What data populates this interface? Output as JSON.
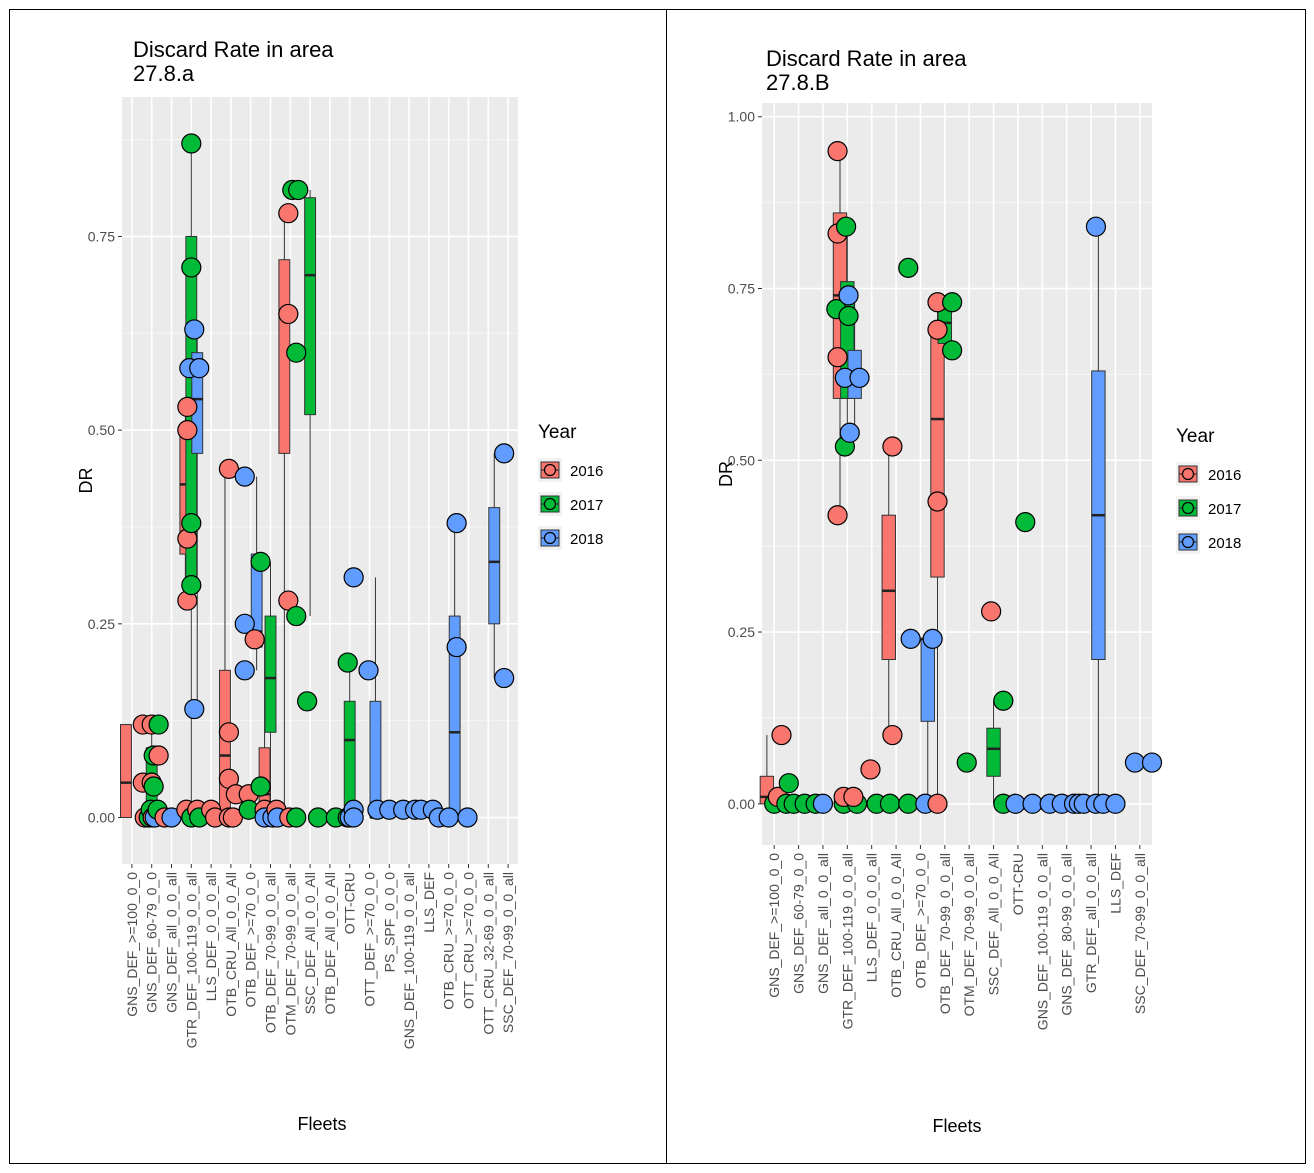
{
  "chart_data": [
    {
      "type": "boxplot",
      "title": "Discard Rate in area\n 27.8.a",
      "xlabel": "Fleets",
      "ylabel": "DR",
      "ylim": [
        -0.06,
        0.93
      ],
      "yticks": [
        0,
        0.25,
        0.5,
        0.75
      ],
      "ytick_labels": [
        "0.00",
        "0.25",
        "0.50",
        "0.75"
      ],
      "legend_title": "Year",
      "legend_position": "right",
      "grid": true,
      "series": [
        {
          "name": "2016",
          "color": "#F8766D"
        },
        {
          "name": "2017",
          "color": "#00BA38"
        },
        {
          "name": "2018",
          "color": "#619CFF"
        }
      ],
      "categories": [
        "GNS_DEF_>=100_0_0",
        "GNS_DEF_60-79_0_0",
        "GNS_DEF_all_0_0_all",
        "GTR_DEF_100-119_0_0_all",
        "LLS_DEF_0_0_0_all",
        "OTB_CRU_All_0_0_All",
        "OTB_DEF_>=70_0_0",
        "OTB_DEF_70-99_0_0_all",
        "OTM_DEF_70-99_0_0_all",
        "SSC_DEF_All_0_0_All",
        "OTB_DEF_All_0_0_All",
        "OTT-CRU",
        "OTT_DEF_>=70_0_0",
        "PS_SPF_0_0_0",
        "GNS_DEF_100-119_0_0_all",
        "LLS_DEF",
        "OTB_CRU_>=70_0_0",
        "OTT_CRU_>=70_0_0",
        "OTT_CRU_32-69_0_0_all",
        "SSC_DEF_70-99_0_0_all"
      ],
      "boxes": [
        {
          "cat": 0,
          "year": "2016",
          "q1": 0.0,
          "median": 0.045,
          "q3": 0.12,
          "whisker_low": 0.0,
          "whisker_high": 0.12
        },
        {
          "cat": 1,
          "year": "2017",
          "q1": 0.0,
          "median": 0.04,
          "q3": 0.09,
          "whisker_low": 0.0,
          "whisker_high": 0.12
        },
        {
          "cat": 3,
          "year": "2016",
          "q1": 0.34,
          "median": 0.43,
          "q3": 0.5,
          "whisker_low": 0.28,
          "whisker_high": 0.52
        },
        {
          "cat": 3,
          "year": "2017",
          "q1": 0.3,
          "median": 0.54,
          "q3": 0.75,
          "whisker_low": 0.0,
          "whisker_high": 0.87
        },
        {
          "cat": 3,
          "year": "2018",
          "q1": 0.47,
          "median": 0.54,
          "q3": 0.6,
          "whisker_low": 0.14,
          "whisker_high": 0.63
        },
        {
          "cat": 5,
          "year": "2016",
          "q1": 0.0,
          "median": 0.08,
          "q3": 0.19,
          "whisker_low": 0.0,
          "whisker_high": 0.45
        },
        {
          "cat": 6,
          "year": "2018",
          "q1": 0.22,
          "median": 0.24,
          "q3": 0.34,
          "whisker_low": 0.19,
          "whisker_high": 0.44
        },
        {
          "cat": 7,
          "year": "2016",
          "q1": 0.0,
          "median": 0.03,
          "q3": 0.09,
          "whisker_low": 0.0,
          "whisker_high": 0.23
        },
        {
          "cat": 7,
          "year": "2017",
          "q1": 0.11,
          "median": 0.18,
          "q3": 0.26,
          "whisker_low": 0.0,
          "whisker_high": 0.33
        },
        {
          "cat": 8,
          "year": "2016",
          "q1": 0.47,
          "median": 0.65,
          "q3": 0.72,
          "whisker_low": 0.0,
          "whisker_high": 0.78
        },
        {
          "cat": 9,
          "year": "2017",
          "q1": 0.52,
          "median": 0.7,
          "q3": 0.8,
          "whisker_low": 0.26,
          "whisker_high": 0.81
        },
        {
          "cat": 11,
          "year": "2017",
          "q1": 0.0,
          "median": 0.1,
          "q3": 0.15,
          "whisker_low": 0.0,
          "whisker_high": 0.2
        },
        {
          "cat": 12,
          "year": "2018",
          "q1": 0.0,
          "median": 0.0,
          "q3": 0.15,
          "whisker_low": 0.0,
          "whisker_high": 0.31
        },
        {
          "cat": 16,
          "year": "2018",
          "q1": 0.0,
          "median": 0.11,
          "q3": 0.26,
          "whisker_low": 0.0,
          "whisker_high": 0.38
        },
        {
          "cat": 18,
          "year": "2018",
          "q1": 0.25,
          "median": 0.33,
          "q3": 0.4,
          "whisker_low": 0.18,
          "whisker_high": 0.47
        }
      ],
      "points": [
        [
          0.55,
          0.12,
          "2016"
        ],
        [
          0.55,
          0.045,
          "2016"
        ],
        [
          0.65,
          0.0,
          "2016"
        ],
        [
          0.85,
          0.0,
          "2017"
        ],
        [
          0.95,
          0.01,
          "2017"
        ],
        [
          1.0,
          0.12,
          "2016"
        ],
        [
          1.0,
          0.045,
          "2016"
        ],
        [
          1.05,
          0.0,
          "2016"
        ],
        [
          1.1,
          0.08,
          "2017"
        ],
        [
          1.1,
          0.04,
          "2017"
        ],
        [
          1.15,
          0.0,
          "2018"
        ],
        [
          1.35,
          0.12,
          "2017"
        ],
        [
          1.35,
          0.08,
          "2016"
        ],
        [
          1.3,
          0.01,
          "2017"
        ],
        [
          1.65,
          0.0,
          "2016"
        ],
        [
          2.0,
          0.0,
          "2018"
        ],
        [
          2.8,
          0.53,
          "2016"
        ],
        [
          2.8,
          0.5,
          "2016"
        ],
        [
          2.8,
          0.36,
          "2016"
        ],
        [
          2.8,
          0.28,
          "2016"
        ],
        [
          2.75,
          0.01,
          "2016"
        ],
        [
          3.0,
          0.87,
          "2017"
        ],
        [
          3.0,
          0.71,
          "2017"
        ],
        [
          3.0,
          0.38,
          "2017"
        ],
        [
          3.0,
          0.3,
          "2017"
        ],
        [
          3.0,
          0.0,
          "2017"
        ],
        [
          2.9,
          0.58,
          "2018"
        ],
        [
          3.15,
          0.63,
          "2018"
        ],
        [
          3.15,
          0.14,
          "2018"
        ],
        [
          3.3,
          0.01,
          "2016"
        ],
        [
          3.4,
          0.58,
          "2018"
        ],
        [
          3.4,
          0.0,
          "2017"
        ],
        [
          4.0,
          0.01,
          "2016"
        ],
        [
          4.2,
          0.0,
          "2016"
        ],
        [
          4.9,
          0.45,
          "2016"
        ],
        [
          4.9,
          0.11,
          "2016"
        ],
        [
          4.9,
          0.05,
          "2016"
        ],
        [
          4.9,
          0.0,
          "2016"
        ],
        [
          5.1,
          0.0,
          "2016"
        ],
        [
          5.25,
          0.03,
          "2016"
        ],
        [
          5.9,
          0.03,
          "2016"
        ],
        [
          5.7,
          0.44,
          "2018"
        ],
        [
          5.7,
          0.25,
          "2018"
        ],
        [
          5.7,
          0.19,
          "2018"
        ],
        [
          5.9,
          0.01,
          "2017"
        ],
        [
          6.2,
          0.23,
          "2016"
        ],
        [
          6.5,
          0.33,
          "2017"
        ],
        [
          6.5,
          0.04,
          "2017"
        ],
        [
          6.7,
          0.01,
          "2016"
        ],
        [
          6.7,
          0.0,
          "2018"
        ],
        [
          7.1,
          0.0,
          "2018"
        ],
        [
          7.3,
          0.01,
          "2016"
        ],
        [
          7.35,
          0.0,
          "2018"
        ],
        [
          7.9,
          0.78,
          "2016"
        ],
        [
          7.9,
          0.65,
          "2016"
        ],
        [
          7.9,
          0.28,
          "2016"
        ],
        [
          7.95,
          0.0,
          "2016"
        ],
        [
          8.1,
          0.81,
          "2017"
        ],
        [
          8.4,
          0.81,
          "2017"
        ],
        [
          8.3,
          0.6,
          "2017"
        ],
        [
          8.3,
          0.26,
          "2017"
        ],
        [
          8.3,
          0.0,
          "2017"
        ],
        [
          8.85,
          0.15,
          "2017"
        ],
        [
          9.4,
          0.0,
          "2017"
        ],
        [
          10.3,
          0.0,
          "2017"
        ],
        [
          10.9,
          0.2,
          "2017"
        ],
        [
          10.9,
          0.0,
          "2017"
        ],
        [
          11.0,
          0.0,
          "2018"
        ],
        [
          11.2,
          0.01,
          "2018"
        ],
        [
          11.2,
          0.0,
          "2018"
        ],
        [
          11.2,
          0.31,
          "2018"
        ],
        [
          11.95,
          0.19,
          "2018"
        ],
        [
          12.4,
          0.01,
          "2018"
        ],
        [
          13.0,
          0.01,
          "2018"
        ],
        [
          13.7,
          0.01,
          "2018"
        ],
        [
          14.3,
          0.01,
          "2018"
        ],
        [
          14.6,
          0.01,
          "2018"
        ],
        [
          15.2,
          0.01,
          "2018"
        ],
        [
          15.5,
          0.0,
          "2018"
        ],
        [
          16.0,
          0.0,
          "2018"
        ],
        [
          16.4,
          0.38,
          "2018"
        ],
        [
          16.4,
          0.22,
          "2018"
        ],
        [
          16.95,
          0.0,
          "2018"
        ],
        [
          18.8,
          0.47,
          "2018"
        ],
        [
          18.8,
          0.18,
          "2018"
        ]
      ]
    },
    {
      "type": "boxplot",
      "title": "Discard Rate in area\n 27.8.B",
      "xlabel": "Fleets",
      "ylabel": "DR",
      "ylim": [
        -0.06,
        1.02
      ],
      "yticks": [
        0,
        0.25,
        0.5,
        0.75,
        1.0
      ],
      "ytick_labels": [
        "0.00",
        "0.25",
        "0.50",
        "0.75",
        "1.00"
      ],
      "legend_title": "Year",
      "legend_position": "right",
      "grid": true,
      "series": [
        {
          "name": "2016",
          "color": "#F8766D"
        },
        {
          "name": "2017",
          "color": "#00BA38"
        },
        {
          "name": "2018",
          "color": "#619CFF"
        }
      ],
      "categories": [
        "GNS_DEF_>=100_0_0",
        "GNS_DEF_60-79_0_0",
        "GNS_DEF_all_0_0_all",
        "GTR_DEF_100-119_0_0_all",
        "LLS_DEF_0_0_0_all",
        "OTB_CRU_All_0_0_All",
        "OTB_DEF_>=70_0_0",
        "OTB_DEF_70-99_0_0_all",
        "OTM_DEF_70-99_0_0_all",
        "SSC_DEF_All_0_0_All",
        "OTT-CRU",
        "GNS_DEF_100-119_0_0_all",
        "GNS_DEF_80-99_0_0_all",
        "GTR_DEF_all_0_0_all",
        "LLS_DEF",
        "SSC_DEF_70-99_0_0_all"
      ],
      "boxes": [
        {
          "cat": 0,
          "year": "2016",
          "q1": 0.0,
          "median": 0.01,
          "q3": 0.04,
          "whisker_low": 0.0,
          "whisker_high": 0.1
        },
        {
          "cat": 3,
          "year": "2016",
          "q1": 0.59,
          "median": 0.74,
          "q3": 0.86,
          "whisker_low": 0.42,
          "whisker_high": 0.95
        },
        {
          "cat": 3,
          "year": "2017",
          "q1": 0.59,
          "median": 0.72,
          "q3": 0.76,
          "whisker_low": 0.52,
          "whisker_high": 0.84
        },
        {
          "cat": 3,
          "year": "2018",
          "q1": 0.59,
          "median": 0.62,
          "q3": 0.66,
          "whisker_low": 0.54,
          "whisker_high": 0.74
        },
        {
          "cat": 5,
          "year": "2016",
          "q1": 0.21,
          "median": 0.31,
          "q3": 0.42,
          "whisker_low": 0.1,
          "whisker_high": 0.52
        },
        {
          "cat": 6,
          "year": "2018",
          "q1": 0.12,
          "median": 0.24,
          "q3": 0.24,
          "whisker_low": 0.0,
          "whisker_high": 0.24
        },
        {
          "cat": 7,
          "year": "2016",
          "q1": 0.33,
          "median": 0.56,
          "q3": 0.69,
          "whisker_low": 0.0,
          "whisker_high": 0.73
        },
        {
          "cat": 7,
          "year": "2017",
          "q1": 0.67,
          "median": 0.7,
          "q3": 0.72,
          "whisker_low": 0.66,
          "whisker_high": 0.73
        },
        {
          "cat": 9,
          "year": "2017",
          "q1": 0.04,
          "median": 0.08,
          "q3": 0.11,
          "whisker_low": 0.0,
          "whisker_high": 0.15
        },
        {
          "cat": 13,
          "year": "2018",
          "q1": 0.21,
          "median": 0.42,
          "q3": 0.63,
          "whisker_low": 0.0,
          "whisker_high": 0.84
        }
      ],
      "points": [
        [
          0.0,
          0.0,
          "2017"
        ],
        [
          0.15,
          0.01,
          "2016"
        ],
        [
          0.3,
          0.1,
          "2016"
        ],
        [
          0.5,
          0.0,
          "2017"
        ],
        [
          0.6,
          0.03,
          "2017"
        ],
        [
          0.8,
          0.0,
          "2017"
        ],
        [
          1.25,
          0.0,
          "2017"
        ],
        [
          1.7,
          0.0,
          "2017"
        ],
        [
          2.0,
          0.0,
          "2018"
        ],
        [
          2.6,
          0.95,
          "2016"
        ],
        [
          2.6,
          0.83,
          "2016"
        ],
        [
          2.6,
          0.65,
          "2016"
        ],
        [
          2.6,
          0.42,
          "2016"
        ],
        [
          2.55,
          0.72,
          "2017"
        ],
        [
          2.95,
          0.84,
          "2017"
        ],
        [
          3.05,
          0.71,
          "2017"
        ],
        [
          2.9,
          0.52,
          "2017"
        ],
        [
          3.05,
          0.74,
          "2018"
        ],
        [
          2.9,
          0.62,
          "2018"
        ],
        [
          3.1,
          0.54,
          "2018"
        ],
        [
          3.5,
          0.62,
          "2018"
        ],
        [
          2.85,
          0.0,
          "2017"
        ],
        [
          2.85,
          0.01,
          "2016"
        ],
        [
          3.4,
          0.0,
          "2017"
        ],
        [
          3.25,
          0.01,
          "2016"
        ],
        [
          3.95,
          0.05,
          "2016"
        ],
        [
          4.2,
          0.0,
          "2017"
        ],
        [
          4.85,
          0.52,
          "2016"
        ],
        [
          4.85,
          0.1,
          "2016"
        ],
        [
          4.75,
          0.0,
          "2017"
        ],
        [
          5.5,
          0.78,
          "2017"
        ],
        [
          5.5,
          0.0,
          "2017"
        ],
        [
          5.6,
          0.24,
          "2018"
        ],
        [
          6.2,
          0.0,
          "2018"
        ],
        [
          6.5,
          0.24,
          "2018"
        ],
        [
          6.7,
          0.73,
          "2016"
        ],
        [
          6.7,
          0.69,
          "2016"
        ],
        [
          6.7,
          0.44,
          "2016"
        ],
        [
          6.7,
          0.0,
          "2016"
        ],
        [
          7.3,
          0.73,
          "2017"
        ],
        [
          7.3,
          0.66,
          "2017"
        ],
        [
          7.9,
          0.06,
          "2017"
        ],
        [
          8.9,
          0.28,
          "2016"
        ],
        [
          9.4,
          0.15,
          "2017"
        ],
        [
          9.4,
          0.0,
          "2017"
        ],
        [
          9.9,
          0.0,
          "2018"
        ],
        [
          10.3,
          0.41,
          "2017"
        ],
        [
          10.6,
          0.0,
          "2018"
        ],
        [
          11.3,
          0.0,
          "2018"
        ],
        [
          11.8,
          0.0,
          "2018"
        ],
        [
          12.3,
          0.0,
          "2018"
        ],
        [
          12.5,
          0.0,
          "2018"
        ],
        [
          12.7,
          0.0,
          "2018"
        ],
        [
          13.2,
          0.84,
          "2018"
        ],
        [
          13.2,
          0.0,
          "2018"
        ],
        [
          13.5,
          0.0,
          "2018"
        ],
        [
          14.0,
          0.0,
          "2018"
        ],
        [
          14.8,
          0.06,
          "2018"
        ],
        [
          15.5,
          0.06,
          "2018"
        ]
      ]
    }
  ]
}
